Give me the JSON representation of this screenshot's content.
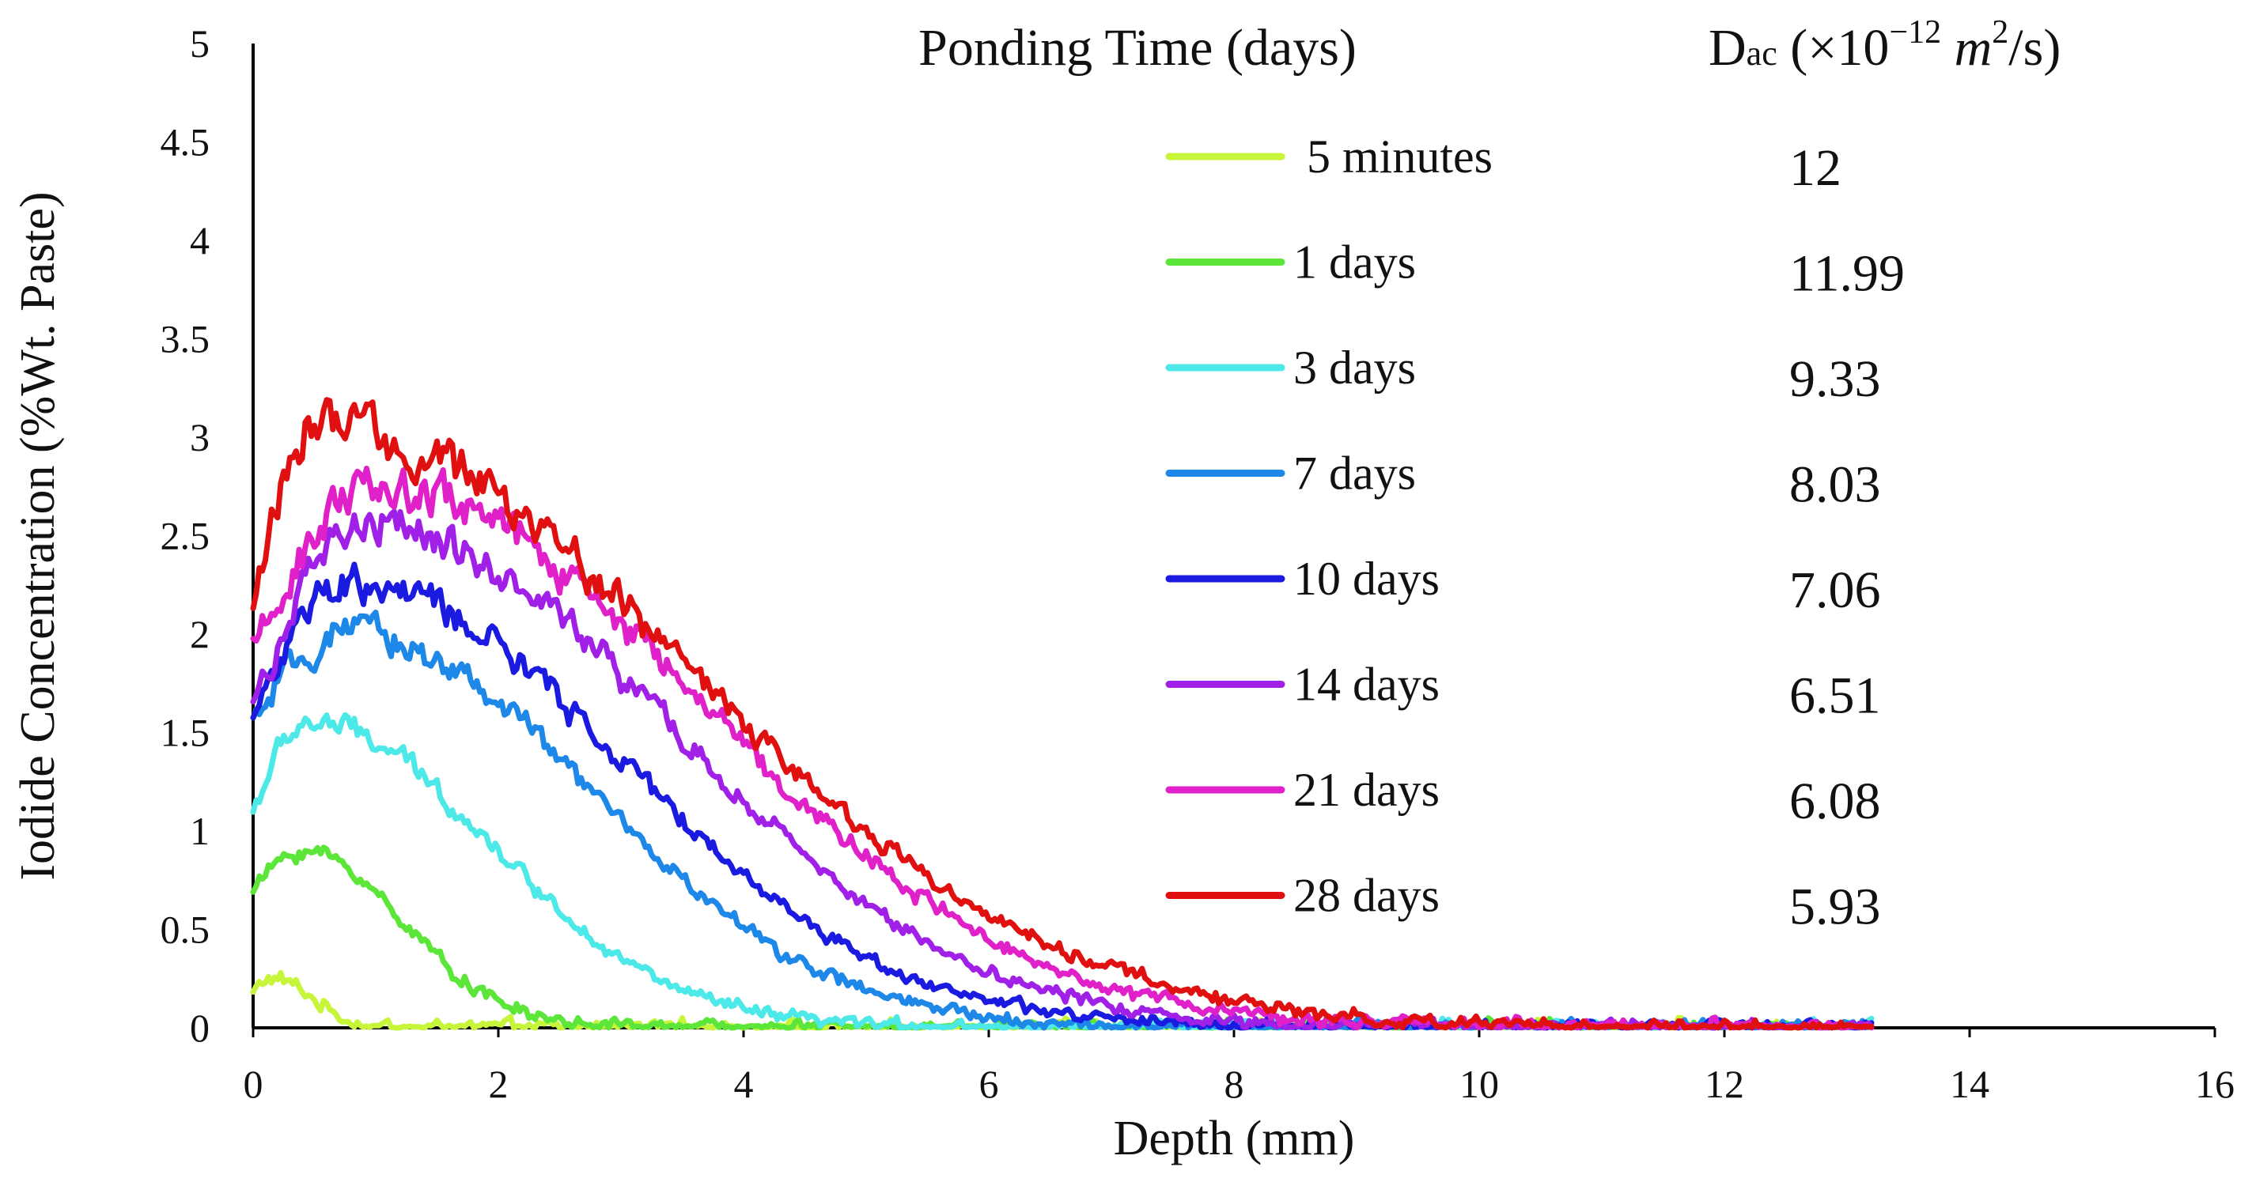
{
  "chart_data": {
    "type": "line",
    "title": "",
    "xlabel": "Depth (mm)",
    "ylabel": "Iodide Concentration (%Wt. Paste)",
    "xlim": [
      0,
      16
    ],
    "ylim": [
      0,
      5
    ],
    "x_ticks": [
      "0",
      "2",
      "4",
      "6",
      "8",
      "10",
      "12",
      "14",
      "16"
    ],
    "y_ticks": [
      "0",
      "0.5",
      "1",
      "1.5",
      "2",
      "2.5",
      "3",
      "3.5",
      "4",
      "4.5",
      "5"
    ],
    "grid": false,
    "legend_position": "top-right",
    "legend_title": "Ponding Time (days)",
    "dac_header_prefix": "D",
    "dac_header_sub": "ac",
    "dac_header_rest": " (×10",
    "dac_header_exp": "−12",
    "dac_header_unit": " m",
    "dac_header_unit_exp": "2",
    "dac_header_tail": "/s)",
    "series": [
      {
        "name": "5 minutes",
        "color": "#c6f53a",
        "dac": "12",
        "peak": 0.25,
        "peak_x": 0.15,
        "start": 0.18,
        "decay": 0.45
      },
      {
        "name": "1 days",
        "color": "#5de63a",
        "dac": "11.99",
        "peak": 0.9,
        "peak_x": 0.4,
        "start": 0.7,
        "decay": 1.1
      },
      {
        "name": "3 days",
        "color": "#4de8e8",
        "dac": "9.33",
        "peak": 1.55,
        "peak_x": 0.45,
        "start": 1.1,
        "decay": 2.0
      },
      {
        "name": "7 days",
        "color": "#1e88e8",
        "dac": "8.03",
        "peak": 2.0,
        "peak_x": 0.8,
        "start": 1.55,
        "decay": 2.6
      },
      {
        "name": "10 days",
        "color": "#1a1ae0",
        "dac": "7.06",
        "peak": 2.25,
        "peak_x": 0.8,
        "start": 1.6,
        "decay": 2.95
      },
      {
        "name": "14 days",
        "color": "#a020e8",
        "dac": "6.51",
        "peak": 2.55,
        "peak_x": 0.95,
        "start": 1.65,
        "decay": 3.25
      },
      {
        "name": "21 days",
        "color": "#e020c8",
        "dac": "6.08",
        "peak": 2.75,
        "peak_x": 1.0,
        "start": 1.9,
        "decay": 3.55
      },
      {
        "name": "28 days",
        "color": "#e01010",
        "dac": "5.93",
        "peak": 3.05,
        "peak_x": 0.5,
        "start": 2.15,
        "decay": 4.05
      }
    ],
    "x_end": 13.2
  }
}
